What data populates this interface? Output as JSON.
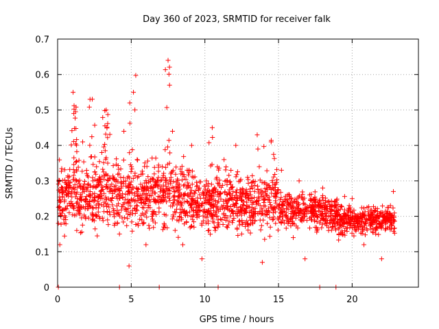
{
  "chart_data": {
    "type": "scatter",
    "title": "Day 360 of 2023, SRMTID for receiver falk",
    "xlabel": "GPS time / hours",
    "ylabel": "SRMTID / TECUs",
    "xlim": [
      0,
      24.5
    ],
    "ylim": [
      0,
      0.7
    ],
    "xticks": [
      0,
      5,
      10,
      15,
      20
    ],
    "xtick_labels": [
      "0",
      "5",
      "10",
      "15",
      "20"
    ],
    "yticks": [
      0,
      0.1,
      0.2,
      0.3,
      0.4,
      0.5,
      0.6,
      0.7
    ],
    "ytick_labels": [
      "0",
      "0.1",
      "0.2",
      "0.3",
      "0.4",
      "0.5",
      "0.6",
      "0.7"
    ],
    "grid": true,
    "marker": "+",
    "color": "#ff0000",
    "sample_points": [
      [
        0.05,
        0.18
      ],
      [
        0.15,
        0.12
      ],
      [
        0.3,
        0.28
      ],
      [
        0.5,
        0.22
      ],
      [
        0.7,
        0.31
      ],
      [
        1.05,
        0.55
      ],
      [
        1.1,
        0.49
      ],
      [
        1.3,
        0.16
      ],
      [
        1.5,
        0.25
      ],
      [
        1.7,
        0.41
      ],
      [
        2.2,
        0.53
      ],
      [
        2.4,
        0.3
      ],
      [
        2.6,
        0.2
      ],
      [
        3.0,
        0.38
      ],
      [
        3.3,
        0.5
      ],
      [
        3.6,
        0.27
      ],
      [
        3.9,
        0.18
      ],
      [
        4.2,
        0.15
      ],
      [
        4.5,
        0.44
      ],
      [
        4.85,
        0.06
      ],
      [
        4.9,
        0.52
      ],
      [
        5.15,
        0.55
      ],
      [
        5.4,
        0.36
      ],
      [
        5.7,
        0.24
      ],
      [
        6.0,
        0.12
      ],
      [
        6.4,
        0.2
      ],
      [
        6.8,
        0.3
      ],
      [
        7.2,
        0.17
      ],
      [
        7.5,
        0.64
      ],
      [
        7.6,
        0.57
      ],
      [
        7.8,
        0.44
      ],
      [
        8.1,
        0.28
      ],
      [
        8.5,
        0.12
      ],
      [
        8.8,
        0.33
      ],
      [
        9.1,
        0.4
      ],
      [
        9.4,
        0.21
      ],
      [
        9.8,
        0.08
      ],
      [
        10.1,
        0.3
      ],
      [
        10.5,
        0.45
      ],
      [
        10.9,
        0.19
      ],
      [
        11.3,
        0.36
      ],
      [
        11.7,
        0.25
      ],
      [
        12.1,
        0.4
      ],
      [
        12.5,
        0.15
      ],
      [
        12.9,
        0.31
      ],
      [
        13.3,
        0.22
      ],
      [
        13.6,
        0.39
      ],
      [
        13.9,
        0.07
      ],
      [
        14.2,
        0.29
      ],
      [
        14.5,
        0.41
      ],
      [
        14.8,
        0.18
      ],
      [
        15.2,
        0.33
      ],
      [
        15.6,
        0.26
      ],
      [
        16.0,
        0.14
      ],
      [
        16.4,
        0.3
      ],
      [
        16.8,
        0.08
      ],
      [
        17.2,
        0.25
      ],
      [
        17.6,
        0.2
      ],
      [
        18.0,
        0.28
      ],
      [
        18.4,
        0.16
      ],
      [
        18.8,
        0.24
      ],
      [
        19.2,
        0.22
      ],
      [
        19.6,
        0.2
      ],
      [
        20.0,
        0.25
      ],
      [
        20.4,
        0.17
      ],
      [
        20.8,
        0.12
      ],
      [
        21.2,
        0.2
      ],
      [
        21.6,
        0.15
      ],
      [
        22.0,
        0.08
      ],
      [
        22.3,
        0.19
      ],
      [
        22.6,
        0.23
      ],
      [
        22.8,
        0.27
      ]
    ],
    "zero_points": [
      0.05,
      4.2,
      6.9,
      10.9,
      17.8,
      18.9
    ]
  }
}
